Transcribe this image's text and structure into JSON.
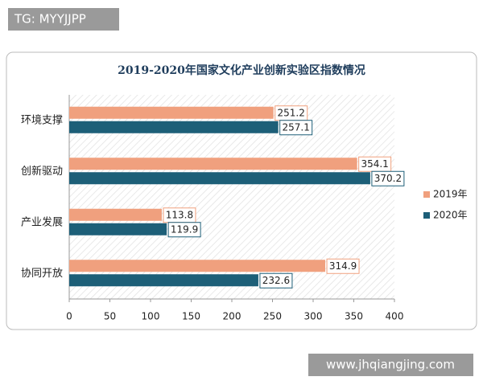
{
  "watermarks": [
    "TG: MYYJJPP",
    "www.jhqiangjing.com"
  ],
  "chart_data": {
    "type": "bar",
    "orientation": "horizontal",
    "title": "2019-2020年国家文化产业创新实验区指数情况",
    "categories": [
      "环境支撑",
      "创新驱动",
      "产业发展",
      "协同开放"
    ],
    "series": [
      {
        "name": "2019年",
        "color": "#f0a07e",
        "values": [
          251.2,
          354.1,
          113.8,
          314.9
        ]
      },
      {
        "name": "2020年",
        "color": "#1d5f78",
        "values": [
          257.1,
          370.2,
          119.9,
          232.6
        ]
      }
    ],
    "xlim": [
      0,
      400
    ],
    "xticks": [
      0,
      50,
      100,
      150,
      200,
      250,
      300,
      350,
      400
    ],
    "legend": "right"
  }
}
